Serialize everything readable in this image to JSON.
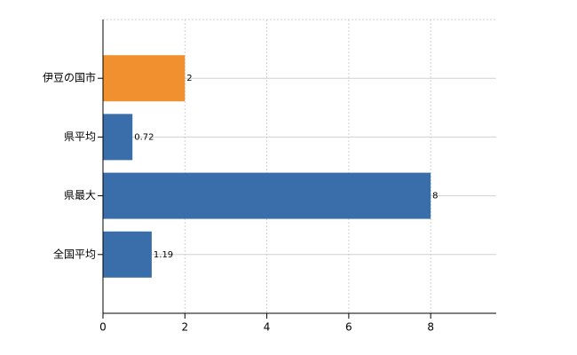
{
  "chart_data": {
    "type": "hbar",
    "categories": [
      "伊豆の国市",
      "県平均",
      "県最大",
      "全国平均"
    ],
    "values": [
      2,
      0.72,
      8,
      1.19
    ],
    "colors": [
      "#f0902e",
      "#3a6eaa",
      "#3a6eaa",
      "#3a6eaa"
    ],
    "xlim": [
      0,
      9.6
    ],
    "xticks": [
      0,
      2,
      4,
      6,
      8
    ],
    "grid": true
  }
}
